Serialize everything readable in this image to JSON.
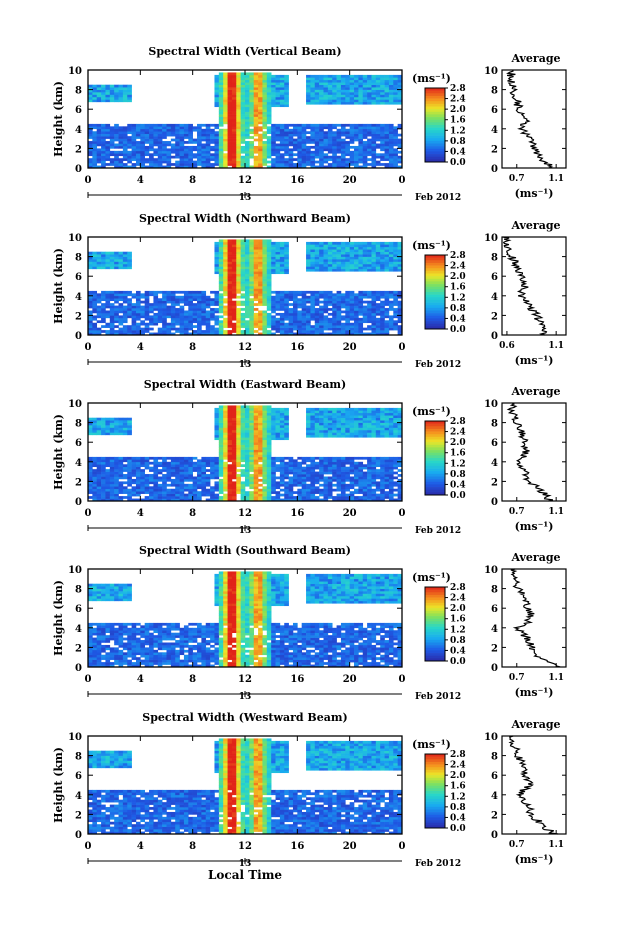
{
  "figure": {
    "xaxis_label": "Local Time",
    "colorbar_unit": "(ms⁻¹)",
    "date_label": "Feb 2012",
    "date_tick_label": "13",
    "avg_xlabel": "(ms⁻¹)",
    "avg_title": "Average",
    "ylabel": "Height (km)",
    "colors": {
      "missing": "#ffffff",
      "low": "#2a2aa8",
      "high": "#e6281e",
      "frame": "#000000"
    }
  },
  "chart_data": [
    {
      "type": "heatmap",
      "title": "Spectral Width (Vertical Beam)",
      "xlabel": "Local Time",
      "ylabel": "Height (km)",
      "xticks": [
        "0",
        "4",
        "8",
        "12",
        "16",
        "20",
        "0"
      ],
      "yticks": [
        "0",
        "2",
        "4",
        "6",
        "8",
        "10"
      ],
      "xlim": [
        0,
        24
      ],
      "ylim": [
        0,
        10
      ],
      "colorbar": {
        "label": "(ms⁻¹)",
        "ticks": [
          "2.8",
          "2.4",
          "2.0",
          "1.6",
          "1.2",
          "0.8",
          "0.4",
          "0.0"
        ],
        "range": [
          0,
          2.8
        ]
      },
      "average": {
        "title": "Average",
        "xlabel": "(ms⁻¹)",
        "xticks": [
          "0.7",
          "1.1"
        ],
        "xlim": [
          0.55,
          1.2
        ],
        "heights": [
          0,
          1,
          2,
          3,
          4,
          5,
          6,
          7,
          8,
          9,
          10
        ],
        "values": [
          1.05,
          0.95,
          0.88,
          0.85,
          0.75,
          0.82,
          0.72,
          0.7,
          0.66,
          0.65,
          0.64
        ]
      }
    },
    {
      "type": "heatmap",
      "title": "Spectral Width (Northward Beam)",
      "xlabel": "Local Time",
      "ylabel": "Height (km)",
      "xticks": [
        "0",
        "4",
        "8",
        "12",
        "16",
        "20",
        "0"
      ],
      "yticks": [
        "0",
        "2",
        "4",
        "6",
        "8",
        "10"
      ],
      "xlim": [
        0,
        24
      ],
      "ylim": [
        0,
        10
      ],
      "colorbar": {
        "label": "(ms⁻¹)",
        "ticks": [
          "2.8",
          "2.4",
          "2.0",
          "1.6",
          "1.2",
          "0.8",
          "0.4",
          "0.0"
        ],
        "range": [
          0,
          2.8
        ]
      },
      "average": {
        "title": "Average",
        "xlabel": "(ms⁻¹)",
        "xticks": [
          "0.6",
          "1.1"
        ],
        "xlim": [
          0.55,
          1.2
        ],
        "heights": [
          0,
          1,
          2,
          3,
          4,
          5,
          6,
          7,
          8,
          9,
          10
        ],
        "values": [
          0.98,
          0.95,
          0.9,
          0.82,
          0.75,
          0.78,
          0.74,
          0.7,
          0.65,
          0.62,
          0.6
        ]
      }
    },
    {
      "type": "heatmap",
      "title": "Spectral Width (Eastward Beam)",
      "xlabel": "Local Time",
      "ylabel": "Height (km)",
      "xticks": [
        "0",
        "4",
        "8",
        "12",
        "16",
        "20",
        "0"
      ],
      "yticks": [
        "0",
        "2",
        "4",
        "6",
        "8",
        "10"
      ],
      "xlim": [
        0,
        24
      ],
      "ylim": [
        0,
        10
      ],
      "colorbar": {
        "label": "(ms⁻¹)",
        "ticks": [
          "2.8",
          "2.4",
          "2.0",
          "1.6",
          "1.2",
          "0.8",
          "0.4",
          "0.0"
        ],
        "range": [
          0,
          2.8
        ]
      },
      "average": {
        "title": "Average",
        "xlabel": "(ms⁻¹)",
        "xticks": [
          "0.7",
          "1.1"
        ],
        "xlim": [
          0.55,
          1.2
        ],
        "heights": [
          0,
          1,
          2,
          3,
          4,
          5,
          6,
          7,
          8,
          9,
          10
        ],
        "values": [
          1.05,
          0.95,
          0.82,
          0.78,
          0.72,
          0.8,
          0.78,
          0.74,
          0.7,
          0.66,
          0.64
        ]
      }
    },
    {
      "type": "heatmap",
      "title": "Spectral Width (Southward Beam)",
      "xlabel": "Local Time",
      "ylabel": "Height (km)",
      "xticks": [
        "0",
        "4",
        "8",
        "12",
        "16",
        "20",
        "0"
      ],
      "yticks": [
        "0",
        "2",
        "4",
        "6",
        "8",
        "10"
      ],
      "xlim": [
        0,
        24
      ],
      "ylim": [
        0,
        10
      ],
      "colorbar": {
        "label": "(ms⁻¹)",
        "ticks": [
          "2.8",
          "2.4",
          "2.0",
          "1.6",
          "1.2",
          "0.8",
          "0.4",
          "0.0"
        ],
        "range": [
          0,
          2.8
        ]
      },
      "average": {
        "title": "Average",
        "xlabel": "(ms⁻¹)",
        "xticks": [
          "0.7",
          "1.1"
        ],
        "xlim": [
          0.55,
          1.2
        ],
        "heights": [
          0,
          1,
          2,
          3,
          4,
          5,
          6,
          7,
          8,
          9,
          10
        ],
        "values": [
          1.1,
          0.92,
          0.85,
          0.8,
          0.72,
          0.86,
          0.8,
          0.78,
          0.72,
          0.68,
          0.66
        ]
      }
    },
    {
      "type": "heatmap",
      "title": "Spectral Width (Westward Beam)",
      "xlabel": "Local Time",
      "ylabel": "Height (km)",
      "xticks": [
        "0",
        "4",
        "8",
        "12",
        "16",
        "20",
        "0"
      ],
      "yticks": [
        "0",
        "2",
        "4",
        "6",
        "8",
        "10"
      ],
      "xlim": [
        0,
        24
      ],
      "ylim": [
        0,
        10
      ],
      "colorbar": {
        "label": "(ms⁻¹)",
        "ticks": [
          "2.8",
          "2.4",
          "2.0",
          "1.6",
          "1.2",
          "0.8",
          "0.4",
          "0.0"
        ],
        "range": [
          0,
          2.8
        ]
      },
      "average": {
        "title": "Average",
        "xlabel": "(ms⁻¹)",
        "xticks": [
          "0.7",
          "1.1"
        ],
        "xlim": [
          0.55,
          1.2
        ],
        "heights": [
          0,
          1,
          2,
          3,
          4,
          5,
          6,
          7,
          8,
          9,
          10
        ],
        "values": [
          1.08,
          0.95,
          0.85,
          0.8,
          0.72,
          0.84,
          0.78,
          0.76,
          0.72,
          0.68,
          0.66
        ]
      }
    }
  ]
}
